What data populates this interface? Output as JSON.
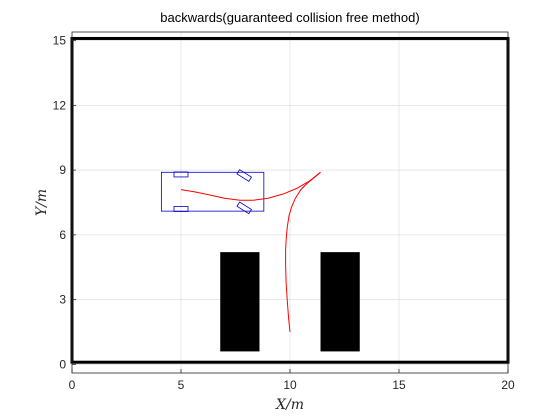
{
  "chart_data": {
    "type": "line",
    "title": "backwards(guaranteed collision free method)",
    "xlabel": "X/m",
    "ylabel": "Y/m",
    "xlim": [
      0,
      20
    ],
    "ylim": [
      -0.4,
      15.4
    ],
    "xticks": [
      "0",
      "5",
      "10",
      "15",
      "20"
    ],
    "yticks": [
      "0",
      "3",
      "6",
      "9",
      "12",
      "15"
    ],
    "grid": true,
    "colors": {
      "path": "#ff0000",
      "vehicle": "#0000cc",
      "obstacle": "#000000",
      "grid": "#e0e0e0"
    },
    "boundary": {
      "x": [
        0,
        20
      ],
      "y": [
        0.1,
        15.1
      ]
    },
    "obstacles": [
      {
        "x": [
          6.8,
          8.6
        ],
        "y": [
          0.6,
          5.2
        ]
      },
      {
        "x": [
          11.4,
          13.2
        ],
        "y": [
          0.6,
          5.2
        ]
      }
    ],
    "vehicle": {
      "body": {
        "x": [
          4.1,
          8.8
        ],
        "y": [
          7.1,
          8.9
        ]
      },
      "wheels": [
        {
          "cx": 5.0,
          "cy": 8.8,
          "angle": 0
        },
        {
          "cx": 5.0,
          "cy": 7.2,
          "angle": 0
        },
        {
          "cx": 7.9,
          "cy": 8.75,
          "angle": 32
        },
        {
          "cx": 7.9,
          "cy": 7.25,
          "angle": 32
        }
      ]
    },
    "series": [
      {
        "x": [
          10.0,
          9.93,
          9.87,
          9.82,
          9.8,
          9.8,
          9.83,
          9.88,
          9.96,
          10.08,
          10.25,
          10.5,
          10.8,
          11.1,
          11.4
        ],
        "y": [
          1.5,
          2.2,
          3.0,
          3.8,
          4.6,
          5.3,
          5.9,
          6.4,
          6.9,
          7.3,
          7.7,
          8.1,
          8.4,
          8.65,
          8.9
        ]
      },
      {
        "x": [
          11.4,
          10.9,
          10.3,
          9.7,
          9.0,
          8.3,
          7.7,
          7.0,
          6.3,
          5.6,
          5.0
        ],
        "y": [
          8.9,
          8.5,
          8.15,
          7.9,
          7.7,
          7.6,
          7.6,
          7.7,
          7.85,
          8.0,
          8.1
        ]
      }
    ]
  }
}
